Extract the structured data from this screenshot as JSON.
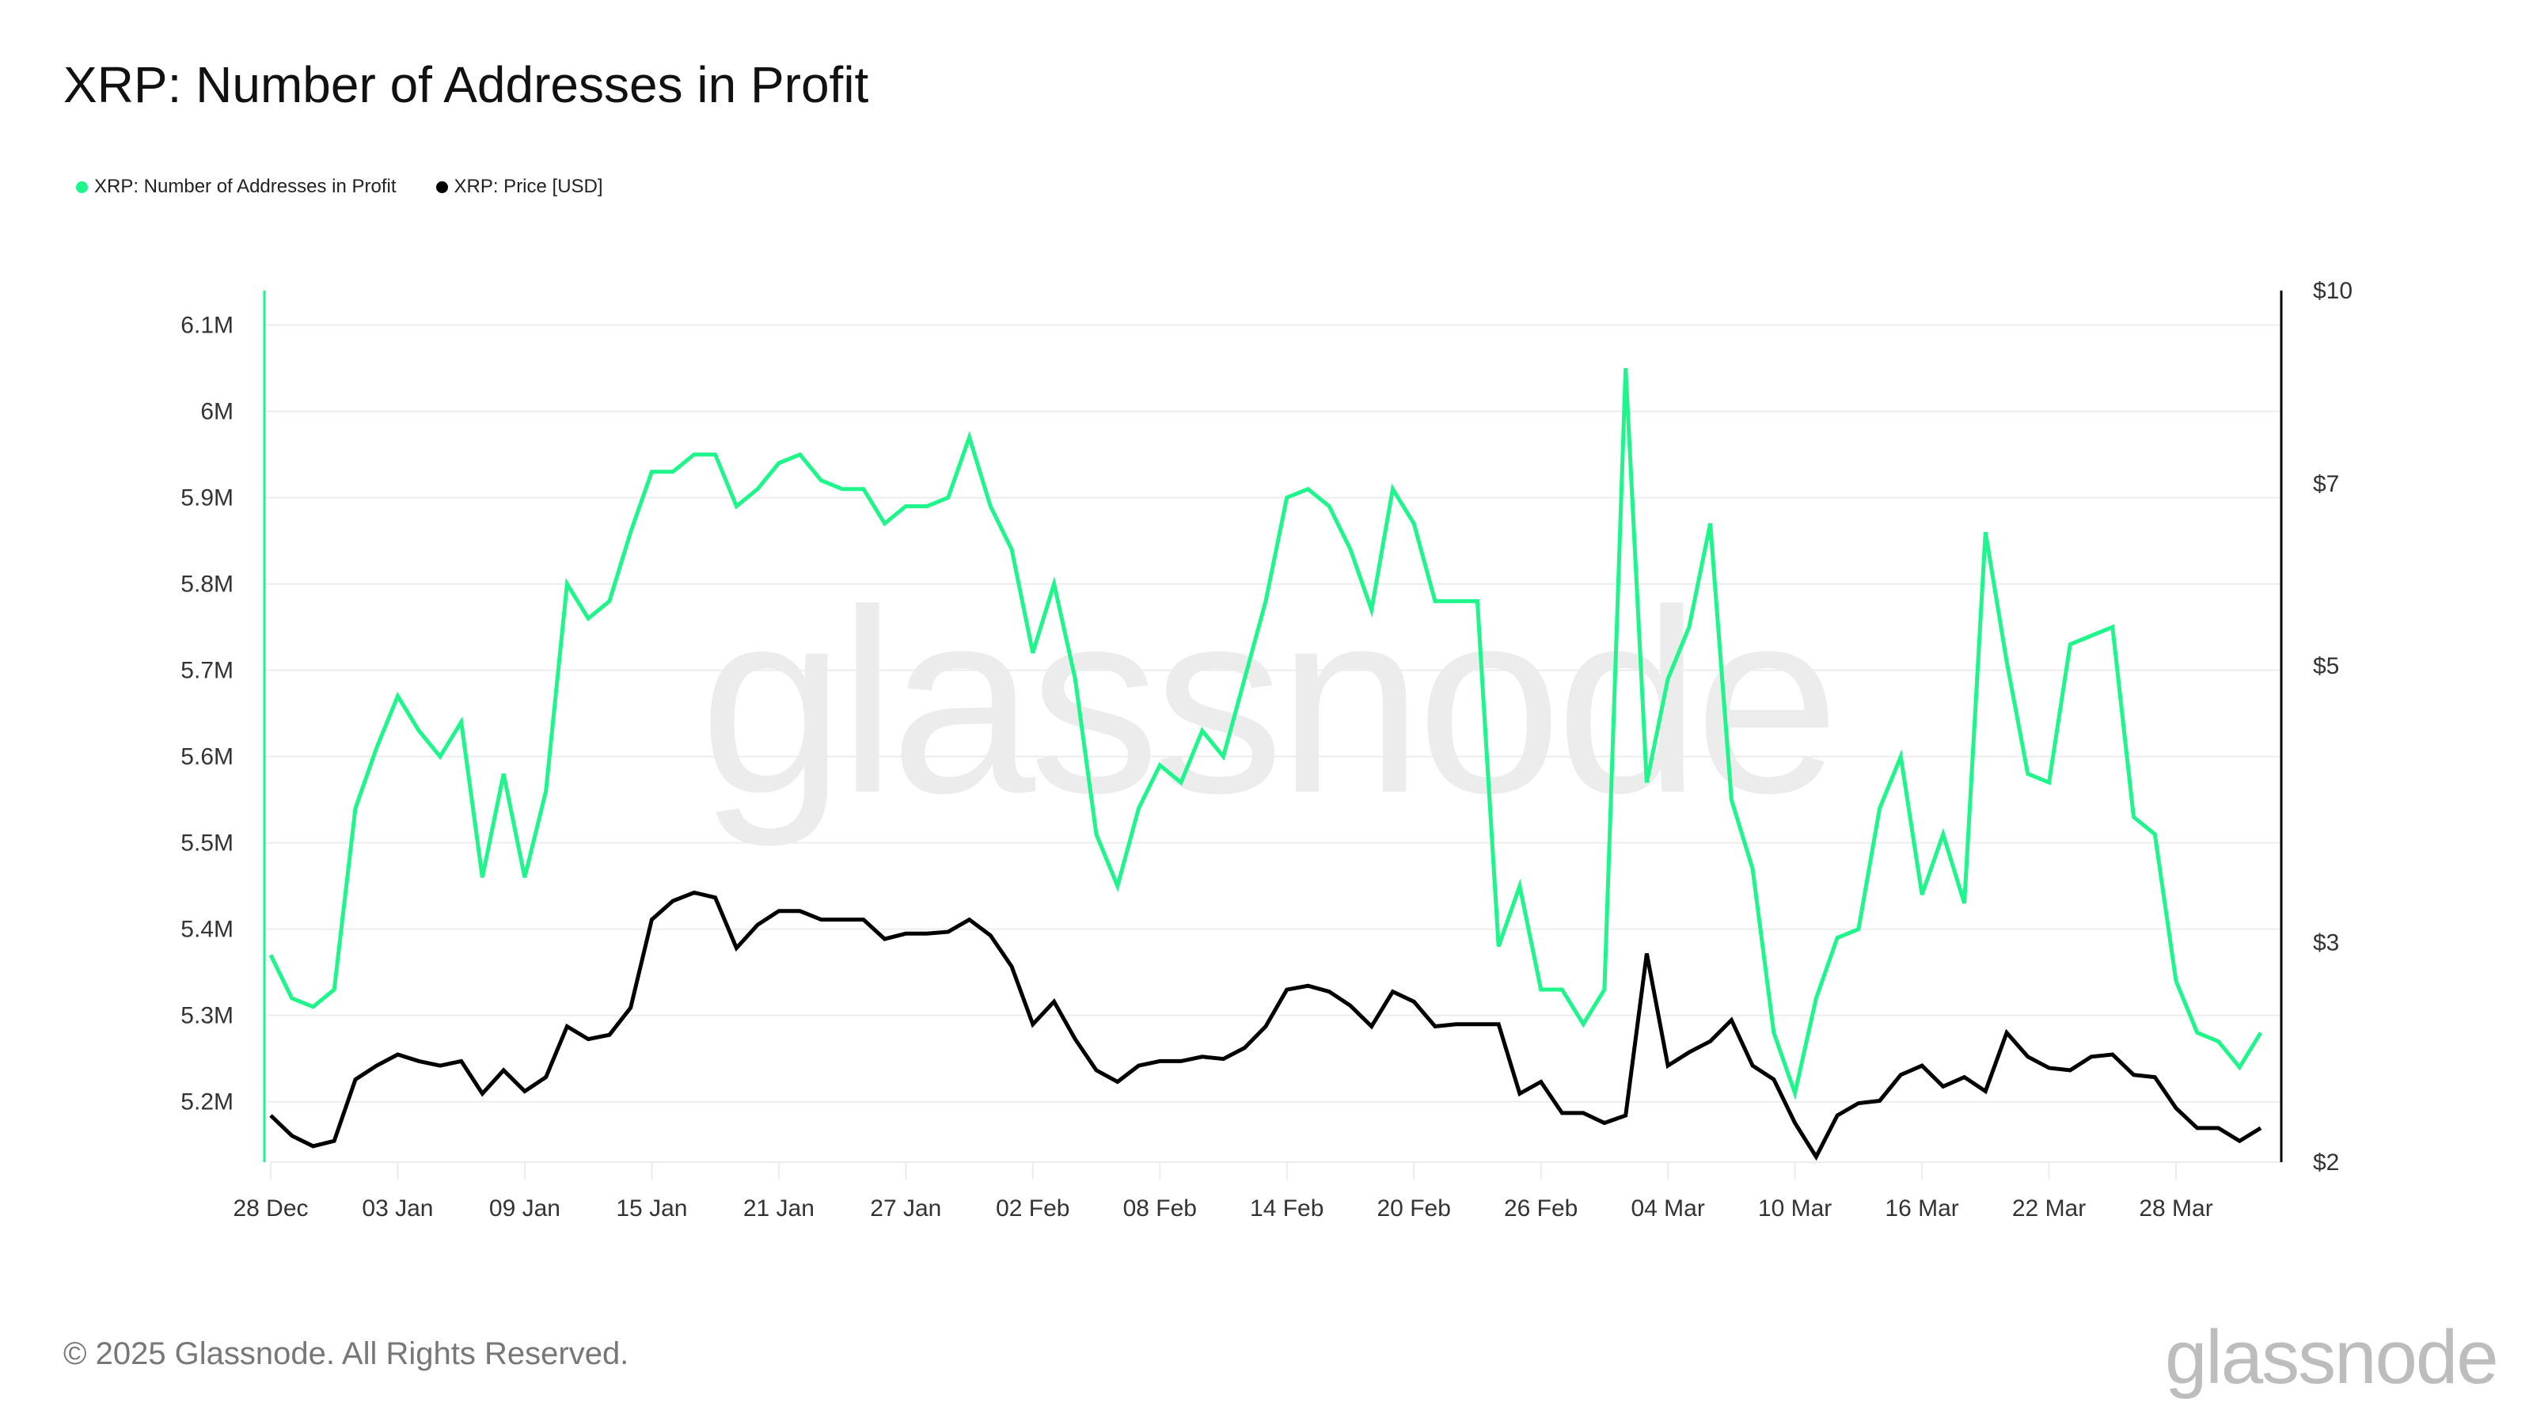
{
  "header": {
    "title": "XRP: Number of Addresses in Profit"
  },
  "footer": {
    "copyright": "© 2025 Glassnode. All Rights Reserved.",
    "logo": "glassnode"
  },
  "watermark": "glassnode",
  "colors": {
    "addresses": "#1ef58a",
    "price": "#000000",
    "grid": "#ececec"
  },
  "chart_data": {
    "type": "line",
    "title": "XRP: Number of Addresses in Profit",
    "legend_position": "top-left",
    "grid": true,
    "x_tick_labels": [
      "28 Dec",
      "03 Jan",
      "09 Jan",
      "15 Jan",
      "21 Jan",
      "27 Jan",
      "02 Feb",
      "08 Feb",
      "14 Feb",
      "20 Feb",
      "26 Feb",
      "04 Mar",
      "10 Mar",
      "16 Mar",
      "22 Mar",
      "28 Mar"
    ],
    "x_tick_every_days": 6,
    "x_start": "28 Dec",
    "x_end": "01 Apr",
    "left_axis": {
      "ticks": [
        5.2,
        5.3,
        5.4,
        5.5,
        5.6,
        5.7,
        5.8,
        5.9,
        6.0,
        6.1
      ],
      "tick_labels": [
        "5.2M",
        "5.3M",
        "5.4M",
        "5.5M",
        "5.6M",
        "5.7M",
        "5.8M",
        "5.9M",
        "6M",
        "6.1M"
      ],
      "ylim": [
        5.13,
        6.14
      ],
      "unit": "M"
    },
    "right_axis": {
      "scale": "log",
      "ticks": [
        2,
        3,
        5,
        7,
        10
      ],
      "tick_labels": [
        "$2",
        "$3",
        "$5",
        "$7",
        "$10"
      ],
      "ylim": [
        2,
        10
      ]
    },
    "series": [
      {
        "name": "XRP: Number of Addresses in Profit",
        "axis": "left",
        "color": "#1ef58a",
        "values": [
          5.37,
          5.32,
          5.31,
          5.33,
          5.54,
          5.61,
          5.67,
          5.63,
          5.6,
          5.64,
          5.46,
          5.58,
          5.46,
          5.56,
          5.8,
          5.76,
          5.78,
          5.86,
          5.93,
          5.93,
          5.95,
          5.95,
          5.89,
          5.91,
          5.94,
          5.95,
          5.92,
          5.91,
          5.91,
          5.87,
          5.89,
          5.89,
          5.9,
          5.97,
          5.89,
          5.84,
          5.72,
          5.8,
          5.69,
          5.51,
          5.45,
          5.54,
          5.59,
          5.57,
          5.63,
          5.6,
          5.69,
          5.78,
          5.9,
          5.91,
          5.89,
          5.84,
          5.77,
          5.91,
          5.87,
          5.78,
          5.78,
          5.78,
          5.38,
          5.45,
          5.33,
          5.33,
          5.29,
          5.33,
          6.05,
          5.57,
          5.69,
          5.75,
          5.87,
          5.55,
          5.47,
          5.28,
          5.21,
          5.32,
          5.39,
          5.4,
          5.54,
          5.6,
          5.44,
          5.51,
          5.43,
          5.86,
          5.71,
          5.58,
          5.57,
          5.73,
          5.74,
          5.75,
          5.53,
          5.51,
          5.34,
          5.28,
          5.27,
          5.24,
          5.28
        ]
      },
      {
        "name": "XRP: Price [USD]",
        "axis": "right",
        "color": "#000000",
        "values": [
          2.18,
          2.1,
          2.06,
          2.08,
          2.33,
          2.39,
          2.44,
          2.41,
          2.39,
          2.41,
          2.27,
          2.37,
          2.28,
          2.34,
          2.57,
          2.51,
          2.53,
          2.66,
          3.13,
          3.24,
          3.29,
          3.26,
          2.97,
          3.1,
          3.18,
          3.18,
          3.13,
          3.13,
          3.13,
          3.02,
          3.05,
          3.05,
          3.06,
          3.13,
          3.04,
          2.87,
          2.58,
          2.69,
          2.51,
          2.37,
          2.32,
          2.39,
          2.41,
          2.41,
          2.43,
          2.42,
          2.47,
          2.57,
          2.75,
          2.77,
          2.74,
          2.67,
          2.57,
          2.74,
          2.69,
          2.57,
          2.58,
          2.58,
          2.58,
          2.27,
          2.32,
          2.19,
          2.19,
          2.15,
          2.18,
          2.94,
          2.39,
          2.45,
          2.5,
          2.6,
          2.39,
          2.33,
          2.15,
          2.02,
          2.18,
          2.23,
          2.24,
          2.35,
          2.39,
          2.3,
          2.34,
          2.28,
          2.54,
          2.43,
          2.38,
          2.37,
          2.43,
          2.44,
          2.35,
          2.34,
          2.21,
          2.13,
          2.13,
          2.08,
          2.13
        ]
      }
    ]
  }
}
